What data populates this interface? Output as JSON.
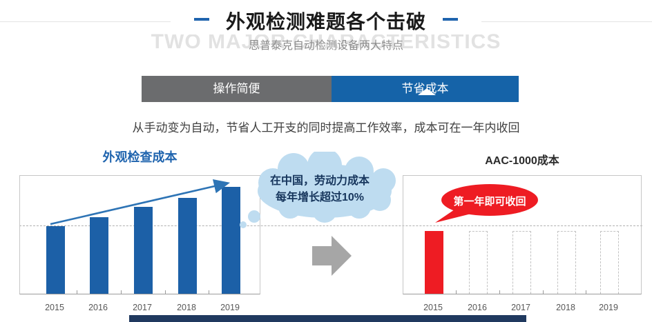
{
  "header": {
    "title": "外观检测难题各个击破",
    "watermark": "TWO MAJOR CHARACTERISTICS",
    "subtitle": "思普泰克自动检测设备两大特点"
  },
  "tabs": [
    {
      "label": "操作简便",
      "active": false
    },
    {
      "label": "节省成本",
      "active": true
    }
  ],
  "intro": "从手动变为自动，节省人工开支的同时提高工作效率，成本可在一年内收回",
  "callouts": {
    "cloud_line1": "在中国，劳动力成本",
    "cloud_line2": "每年增长超过10%",
    "red_bubble": "第一年即可收回"
  },
  "colors": {
    "accent_blue": "#1F64AE",
    "tab_blue": "#1563A8",
    "tab_gray": "#6B6C6E",
    "bar_blue": "#1C60A7",
    "bar_red": "#EE1C23",
    "cloud_fill": "#BEDCF0",
    "cloud_text_navy": "#17365D",
    "footer_navy": "#20395F"
  },
  "chart_data": [
    {
      "type": "bar",
      "title": "外观检查成本",
      "categories": [
        "2015",
        "2016",
        "2017",
        "2018",
        "2019"
      ],
      "values": [
        100,
        113,
        128,
        142,
        158
      ],
      "unit": "relative labor-inspection cost index (2015 = 100)",
      "bar_color": "#1C60A7",
      "grid": "single dashed horizontal baseline at 2015 level",
      "annotations": [
        "blue upward trend arrow across bar tops",
        "在中国，劳动力成本每年增长超过10%"
      ]
    },
    {
      "type": "bar",
      "title": "AAC-1000成本",
      "categories": [
        "2015",
        "2016",
        "2017",
        "2018",
        "2019"
      ],
      "values": [
        100,
        100,
        100,
        100,
        100
      ],
      "bar_styles": [
        "solid",
        "outline-dashed",
        "outline-dashed",
        "outline-dashed",
        "outline-dashed"
      ],
      "unit": "equipment cost paid only in first year; later years shown as empty dashed bars",
      "bar_color": "#EE1C23",
      "grid": "single dashed horizontal baseline above bars",
      "annotations": [
        "第一年即可收回"
      ]
    }
  ]
}
